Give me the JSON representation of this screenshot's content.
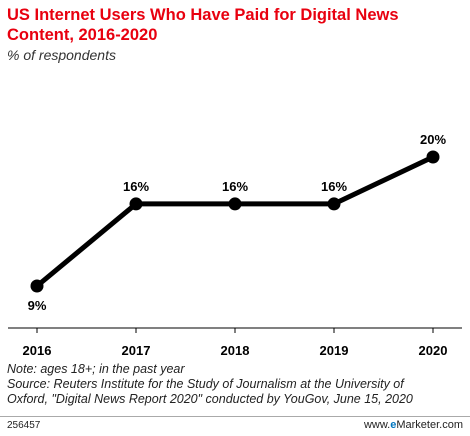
{
  "title": "US Internet Users Who Have Paid for Digital News Content, 2016-2020",
  "subtitle": "% of respondents",
  "notes": {
    "line1": "Note: ages 18+; in the past year",
    "line2": "Source: Reuters Institute for the Study of Journalism at the University of",
    "line3": "Oxford, \"Digital News Report 2020\" conducted by YouGov, June 15, 2020"
  },
  "chart_id": "256457",
  "brand": {
    "www": "www.",
    "e": "e",
    "name": "Marketer",
    "suffix": ".com"
  },
  "colors": {
    "title": "#e8000f",
    "line": "#000000",
    "brand": "#0076c0",
    "grid": "#cccccc"
  },
  "chart_data": {
    "type": "line",
    "x": [
      "2016",
      "2017",
      "2018",
      "2019",
      "2020"
    ],
    "series": [
      {
        "values": [
          9,
          16,
          16,
          16,
          20
        ],
        "labels": [
          "9%",
          "16%",
          "16%",
          "16%",
          "20%"
        ]
      }
    ],
    "title": "US Internet Users Who Have Paid for Digital News Content, 2016-2020",
    "ylabel": "% of respondents",
    "xlabel": "",
    "grid": false,
    "legend": "none"
  }
}
